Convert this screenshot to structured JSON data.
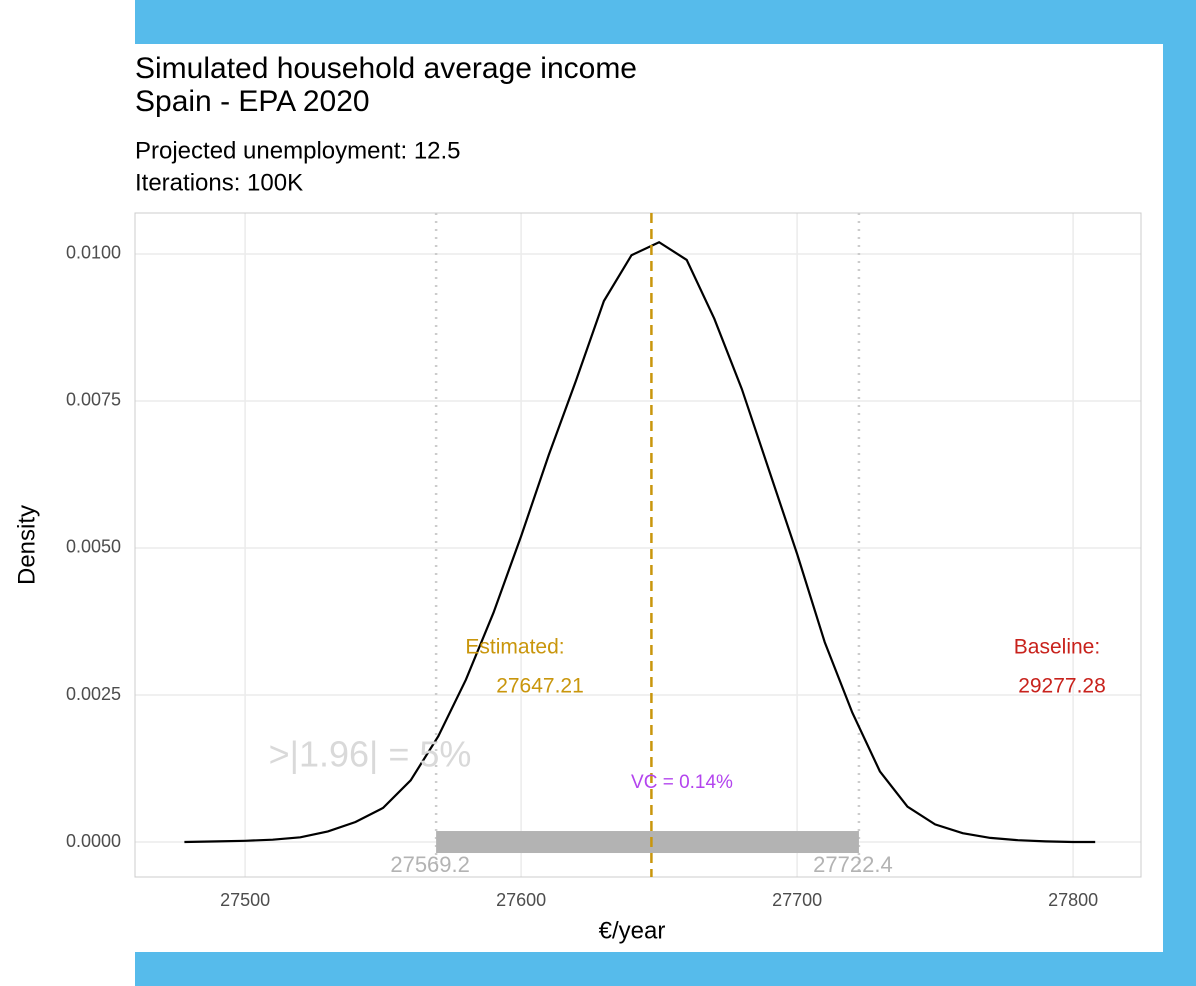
{
  "chart_data": {
    "type": "density",
    "title": [
      "Simulated household average income",
      "Spain - EPA 2020"
    ],
    "subtitle": [
      "Projected unemployment: 12.5",
      "Iterations: 100K"
    ],
    "x_label": "€/year",
    "y_label": "Density",
    "color": "#000000",
    "x": [
      27478,
      27490,
      27500,
      27510,
      27520,
      27530,
      27540,
      27550,
      27560,
      27570,
      27580,
      27590,
      27600,
      27610,
      27620,
      27630,
      27640,
      27650,
      27660,
      27670,
      27680,
      27690,
      27700,
      27710,
      27720,
      27730,
      27740,
      27750,
      27760,
      27770,
      27780,
      27790,
      27800,
      27808
    ],
    "y": [
      0,
      1e-05,
      2e-05,
      4e-05,
      8e-05,
      0.00018,
      0.00034,
      0.00058,
      0.00105,
      0.0018,
      0.00276,
      0.0039,
      0.0052,
      0.00658,
      0.00786,
      0.0092,
      0.00998,
      0.0102,
      0.0099,
      0.0089,
      0.0077,
      0.0063,
      0.0049,
      0.0034,
      0.0022,
      0.0012,
      0.0006,
      0.0003,
      0.00015,
      7e-05,
      3e-05,
      1e-05,
      0,
      0
    ],
    "xlim": [
      27460.1,
      27824.6
    ],
    "ylim": [
      -0.000595,
      0.010697
    ],
    "xticks": [
      27500,
      27600,
      27700,
      27800
    ],
    "yticks": [
      {
        "value": 0,
        "label": "0.0000"
      },
      {
        "value": 0.0025,
        "label": "0.0025"
      },
      {
        "value": 0.005,
        "label": "0.0050"
      },
      {
        "value": 0.0075,
        "label": "0.0075"
      },
      {
        "value": 0.01,
        "label": "0.0100"
      }
    ],
    "grid": true,
    "estimated": {
      "label": "Estimated:",
      "value": 27647.21,
      "color": "#c9960c"
    },
    "baseline": {
      "label": "Baseline:",
      "value": 29277.28,
      "color": "#c8221c"
    },
    "interval": {
      "lower": 27569.2,
      "upper": 27722.4,
      "color": "#b3b3b3"
    },
    "vc_label": "VC = 0.14%",
    "vc_color": "#b344ee",
    "significance_label": ">|1.96| = 5%"
  }
}
